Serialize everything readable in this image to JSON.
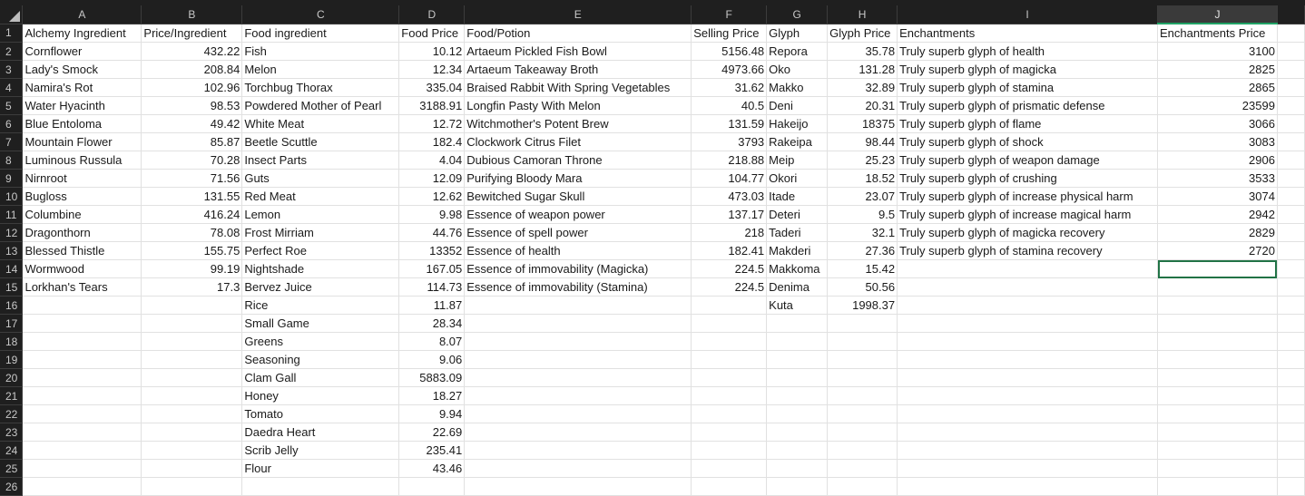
{
  "columns": [
    "A",
    "B",
    "C",
    "D",
    "E",
    "F",
    "G",
    "H",
    "I",
    "J"
  ],
  "active_column": "J",
  "selected_cell": "J14",
  "rows": [
    [
      "Alchemy Ingredient",
      "Price/Ingredient",
      "Food ingredient",
      "Food Price",
      "Food/Potion",
      "Selling Price",
      "Glyph",
      "Glyph Price",
      "Enchantments",
      "Enchantments Price"
    ],
    [
      "Cornflower",
      "432.22",
      "Fish",
      "10.12",
      "Artaeum Pickled Fish Bowl",
      "5156.48",
      "Repora",
      "35.78",
      "Truly superb glyph of health",
      "3100"
    ],
    [
      "Lady's Smock",
      "208.84",
      "Melon",
      "12.34",
      "Artaeum Takeaway Broth",
      "4973.66",
      "Oko",
      "131.28",
      "Truly superb glyph of magicka",
      "2825"
    ],
    [
      "Namira's Rot",
      "102.96",
      "Torchbug Thorax",
      "335.04",
      "Braised Rabbit With Spring Vegetables",
      "31.62",
      "Makko",
      "32.89",
      "Truly superb glyph of stamina",
      "2865"
    ],
    [
      "Water Hyacinth",
      "98.53",
      "Powdered Mother of Pearl",
      "3188.91",
      "Longfin Pasty With Melon",
      "40.5",
      "Deni",
      "20.31",
      "Truly superb glyph of prismatic defense",
      "23599"
    ],
    [
      "Blue Entoloma",
      "49.42",
      "White Meat",
      "12.72",
      "Witchmother's Potent Brew",
      "131.59",
      "Hakeijo",
      "18375",
      "Truly superb glyph of flame",
      "3066"
    ],
    [
      "Mountain Flower",
      "85.87",
      "Beetle Scuttle",
      "182.4",
      "Clockwork Citrus Filet",
      "3793",
      "Rakeipa",
      "98.44",
      "Truly superb glyph of shock",
      "3083"
    ],
    [
      "Luminous Russula",
      "70.28",
      "Insect Parts",
      "4.04",
      "Dubious Camoran Throne",
      "218.88",
      "Meip",
      "25.23",
      "Truly superb glyph of weapon damage",
      "2906"
    ],
    [
      "Nirnroot",
      "71.56",
      "Guts",
      "12.09",
      "Purifying Bloody Mara",
      "104.77",
      "Okori",
      "18.52",
      "Truly superb glyph of crushing",
      "3533"
    ],
    [
      "Bugloss",
      "131.55",
      "Red Meat",
      "12.62",
      "Bewitched Sugar Skull",
      "473.03",
      "Itade",
      "23.07",
      "Truly superb glyph of increase physical harm",
      "3074"
    ],
    [
      "Columbine",
      "416.24",
      "Lemon",
      "9.98",
      "Essence of weapon power",
      "137.17",
      "Deteri",
      "9.5",
      "Truly superb glyph of increase magical harm",
      "2942"
    ],
    [
      "Dragonthorn",
      "78.08",
      "Frost Mirriam",
      "44.76",
      "Essence of spell power",
      "218",
      "Taderi",
      "32.1",
      "Truly superb glyph of magicka recovery",
      "2829"
    ],
    [
      "Blessed Thistle",
      "155.75",
      "Perfect Roe",
      "13352",
      "Essence of health",
      "182.41",
      "Makderi",
      "27.36",
      "Truly superb glyph of stamina recovery",
      "2720"
    ],
    [
      "Wormwood",
      "99.19",
      "Nightshade",
      "167.05",
      "Essence of immovability (Magicka)",
      "224.5",
      "Makkoma",
      "15.42",
      "",
      ""
    ],
    [
      "Lorkhan's Tears",
      "17.3",
      "Bervez Juice",
      "114.73",
      "Essence of immovability (Stamina)",
      "224.5",
      "Denima",
      "50.56",
      "",
      ""
    ],
    [
      "",
      "",
      "Rice",
      "11.87",
      "",
      "",
      "Kuta",
      "1998.37",
      "",
      ""
    ],
    [
      "",
      "",
      "Small Game",
      "28.34",
      "",
      "",
      "",
      "",
      "",
      ""
    ],
    [
      "",
      "",
      "Greens",
      "8.07",
      "",
      "",
      "",
      "",
      "",
      ""
    ],
    [
      "",
      "",
      "Seasoning",
      "9.06",
      "",
      "",
      "",
      "",
      "",
      ""
    ],
    [
      "",
      "",
      "Clam Gall",
      "5883.09",
      "",
      "",
      "",
      "",
      "",
      ""
    ],
    [
      "",
      "",
      "Honey",
      "18.27",
      "",
      "",
      "",
      "",
      "",
      ""
    ],
    [
      "",
      "",
      "Tomato",
      "9.94",
      "",
      "",
      "",
      "",
      "",
      ""
    ],
    [
      "",
      "",
      "Daedra Heart",
      "22.69",
      "",
      "",
      "",
      "",
      "",
      ""
    ],
    [
      "",
      "",
      "Scrib Jelly",
      "235.41",
      "",
      "",
      "",
      "",
      "",
      ""
    ],
    [
      "",
      "",
      "Flour",
      "43.46",
      "",
      "",
      "",
      "",
      "",
      ""
    ],
    [
      "",
      "",
      "",
      "",
      "",
      "",
      "",
      "",
      "",
      ""
    ]
  ]
}
